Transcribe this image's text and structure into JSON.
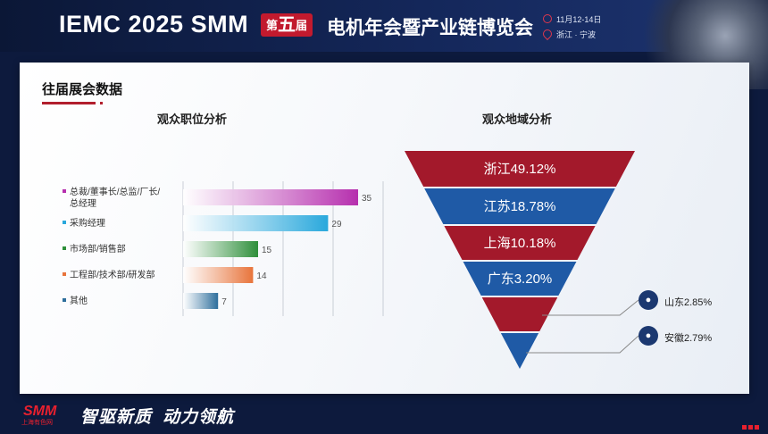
{
  "header": {
    "brand": "IEMC 2025 SMM",
    "edition_prefix": "第",
    "edition_num": "五",
    "edition_suffix": "届",
    "title": "电机年会暨产业链博览会",
    "date": "11月12-14日",
    "location": "浙江 · 宁波",
    "date_icon": "clock-icon",
    "location_icon": "location-pin-icon"
  },
  "section": {
    "title": "往届展会数据"
  },
  "colors": {
    "accent_red": "#b21f2d",
    "navy": "#1b3870",
    "funnel_red": "#a3192b",
    "funnel_blue": "#1f5aa6"
  },
  "chart_data": [
    {
      "type": "bar",
      "orientation": "horizontal",
      "title": "观众职位分析",
      "categories": [
        "总裁/董事长/总监/厂长/总经理",
        "采购经理",
        "市场部/销售部",
        "工程部/技术部/研发部",
        "其他"
      ],
      "category_lines": [
        [
          "总裁/董事长/总监/厂长/",
          "总经理"
        ],
        [
          "采购经理"
        ],
        [
          "市场部/销售部"
        ],
        [
          "工程部/技术部/研发部"
        ],
        [
          "其他"
        ]
      ],
      "values": [
        35,
        29,
        15,
        14,
        7
      ],
      "colors": [
        "#b62fae",
        "#29a8dc",
        "#2e8f3a",
        "#e8743b",
        "#2d6e9c"
      ],
      "xlim": [
        0,
        40
      ],
      "grid": true
    },
    {
      "type": "funnel",
      "title": "观众地域分析",
      "categories": [
        "浙江",
        "江苏",
        "上海",
        "广东",
        "山东",
        "安徽"
      ],
      "values": [
        49.12,
        18.78,
        10.18,
        3.2,
        2.85,
        2.79
      ],
      "labels": [
        "浙江49.12%",
        "江苏18.78%",
        "上海10.18%",
        "广东3.20%",
        "山东2.85%",
        "安徽2.79%"
      ],
      "callout_icon": "people-icon"
    }
  ],
  "footer": {
    "logo": "SMM",
    "logo_sub": "上海有色网",
    "slogan_1": "智驱新质",
    "slogan_2": "动力领航"
  }
}
